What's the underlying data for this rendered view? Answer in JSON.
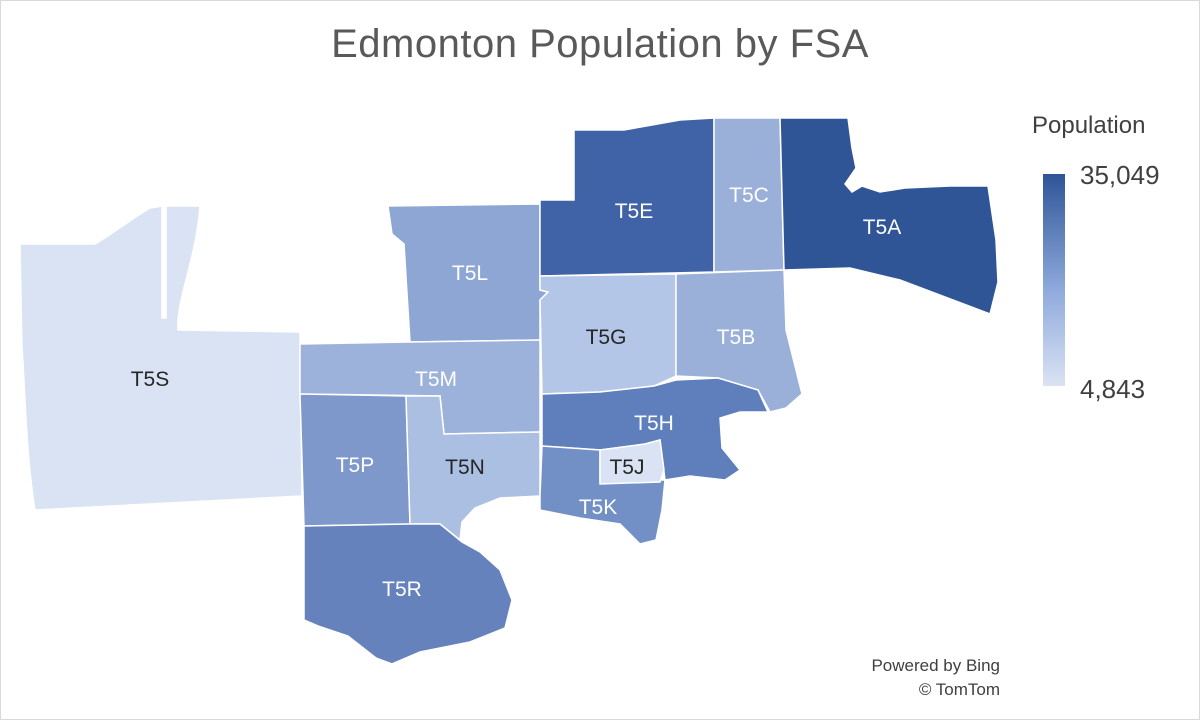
{
  "title": "Edmonton Population by FSA",
  "legend": {
    "title": "Population",
    "max_label": "35,049",
    "min_label": "4,843",
    "max_color": "#2f5597",
    "mid_color": "#8faadc",
    "min_color": "#dae3f3"
  },
  "regions": [
    {
      "code": "T5S",
      "color": "#dae3f3",
      "text_color": "#262626"
    },
    {
      "code": "T5L",
      "color": "#8ea6d4",
      "text_color": "#ffffff"
    },
    {
      "code": "T5E",
      "color": "#3f63a6",
      "text_color": "#ffffff"
    },
    {
      "code": "T5C",
      "color": "#9ab0d8",
      "text_color": "#ffffff"
    },
    {
      "code": "T5A",
      "color": "#2f5597",
      "text_color": "#ffffff"
    },
    {
      "code": "T5G",
      "color": "#b4c6e7",
      "text_color": "#262626"
    },
    {
      "code": "T5B",
      "color": "#9ab0d8",
      "text_color": "#ffffff"
    },
    {
      "code": "T5M",
      "color": "#9db2da",
      "text_color": "#ffffff"
    },
    {
      "code": "T5H",
      "color": "#5e7fbc",
      "text_color": "#ffffff"
    },
    {
      "code": "T5P",
      "color": "#7e98cb",
      "text_color": "#ffffff"
    },
    {
      "code": "T5N",
      "color": "#aabfe2",
      "text_color": "#262626"
    },
    {
      "code": "T5J",
      "color": "#dae3f3",
      "text_color": "#262626"
    },
    {
      "code": "T5K",
      "color": "#7290c6",
      "text_color": "#ffffff"
    },
    {
      "code": "T5R",
      "color": "#6582bd",
      "text_color": "#ffffff"
    }
  ],
  "credits": {
    "line1": "Powered by Bing",
    "line2": "© TomTom"
  }
}
